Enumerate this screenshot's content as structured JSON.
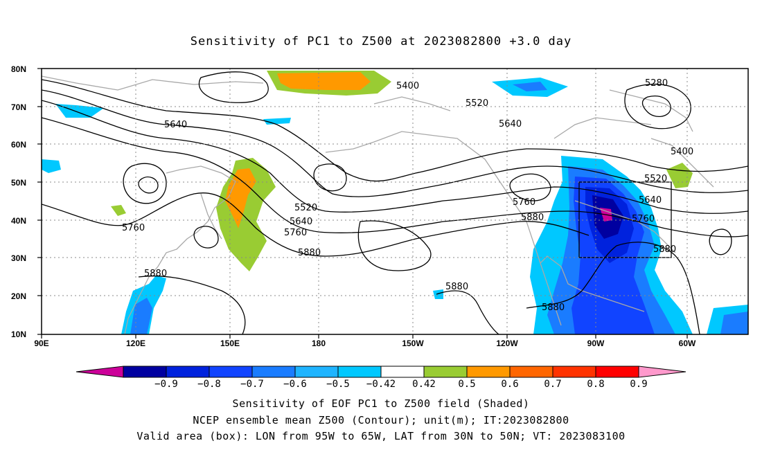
{
  "title": "Sensitivity of PC1 to Z500 at 2023082800 +3.0 day",
  "axes": {
    "lon_labels": [
      "90E",
      "120E",
      "150E",
      "180",
      "150W",
      "120W",
      "90W",
      "60W"
    ],
    "lat_labels": [
      "80N",
      "70N",
      "60N",
      "50N",
      "40N",
      "30N",
      "20N",
      "10N"
    ]
  },
  "contour_labels": [
    "5400",
    "5520",
    "5640",
    "5280",
    "5640",
    "5400",
    "5520",
    "5640",
    "5760",
    "5880",
    "5760",
    "5520",
    "5640",
    "5760",
    "5880",
    "5760",
    "5880",
    "5880",
    "5880",
    "5880"
  ],
  "colorbar": {
    "ticks": [
      "-0.9",
      "-0.8",
      "-0.7",
      "-0.6",
      "-0.5",
      "-0.42",
      "0.42",
      "0.5",
      "0.6",
      "0.7",
      "0.8",
      "0.9"
    ],
    "colors": [
      "#cc0099",
      "#0000a0",
      "#0022dd",
      "#1144ff",
      "#1a7cff",
      "#1fb4ff",
      "#00c8ff",
      "#ffffff",
      "#99cc33",
      "#ff9900",
      "#ff6600",
      "#ff3300",
      "#ff0000",
      "#ff99cc"
    ]
  },
  "caption": {
    "line1": "Sensitivity of EOF PC1 to Z500 field (Shaded)",
    "line2": "NCEP ensemble mean Z500 (Contour); unit(m); IT:2023082800",
    "line3": "Valid area (box): LON from 95W to 65W, LAT from 30N to 50N; VT: 2023083100"
  }
}
